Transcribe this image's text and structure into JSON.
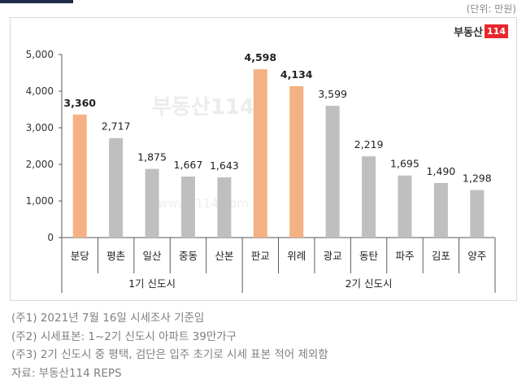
{
  "unit_label": "(단위: 만원)",
  "logo": {
    "text": "부동산",
    "badge": "114"
  },
  "watermark": {
    "brand": "부동산114",
    "url": "www.r114.com"
  },
  "chart_data": {
    "type": "bar",
    "categories": [
      "분당",
      "평촌",
      "일산",
      "중동",
      "산본",
      "판교",
      "위례",
      "광교",
      "동탄",
      "파주",
      "김포",
      "양주"
    ],
    "values": [
      3360,
      2717,
      1875,
      1667,
      1643,
      4598,
      4134,
      3599,
      2219,
      1695,
      1490,
      1298
    ],
    "value_labels": [
      "3,360",
      "2,717",
      "1,875",
      "1,667",
      "1,643",
      "4,598",
      "4,134",
      "3,599",
      "2,219",
      "1,695",
      "1,490",
      "1,298"
    ],
    "highlighted": [
      true,
      false,
      false,
      false,
      false,
      true,
      true,
      false,
      false,
      false,
      false,
      false
    ],
    "groups": [
      {
        "label": "1기 신도시",
        "count": 5
      },
      {
        "label": "2기 신도시",
        "count": 7
      }
    ],
    "ylim": [
      0,
      5000
    ],
    "yticks": [
      0,
      1000,
      2000,
      3000,
      4000,
      5000
    ],
    "ytick_labels": [
      "0",
      "1,000",
      "2,000",
      "3,000",
      "4,000",
      "5,000"
    ],
    "colors": {
      "highlight": "#F4B183",
      "normal": "#BFBFBF"
    },
    "grid": false,
    "title": "",
    "xlabel": "",
    "ylabel": ""
  },
  "notes": [
    "(주1) 2021년 7월 16일 시세조사 기준임",
    "(주2) 시세표본: 1~2기 신도시 아파트 39만가구",
    "(주3) 2기 신도시 중 평택, 검단은 입주 초기로 시세 표본 적어 제외함",
    "자료: 부동산114 REPS"
  ]
}
